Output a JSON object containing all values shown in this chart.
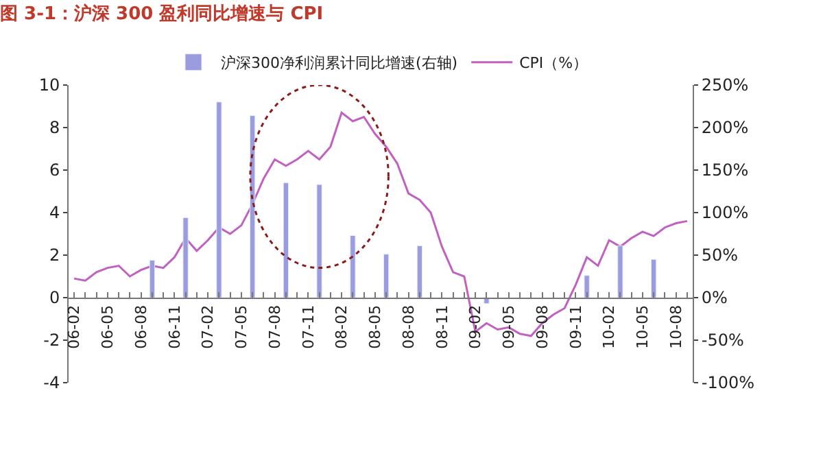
{
  "chart_data": {
    "type": "line",
    "title": "图 3-1：沪深 300 盈利同比增速与 CPI",
    "categories": [
      "06-02",
      null,
      null,
      "06-05",
      null,
      null,
      "06-08",
      null,
      null,
      "06-11",
      null,
      null,
      "07-02",
      null,
      null,
      "07-05",
      null,
      null,
      "07-08",
      null,
      null,
      "07-11",
      null,
      null,
      "08-02",
      null,
      null,
      "08-05",
      null,
      null,
      "08-08",
      null,
      null,
      "08-11",
      null,
      null,
      "09-02",
      null,
      null,
      "09-05",
      null,
      null,
      "09-08",
      null,
      null,
      "09-11",
      null,
      null,
      "10-02",
      null,
      null,
      "10-05",
      null,
      null,
      "10-08",
      null
    ],
    "series": [
      {
        "name": "沪深300净利润累计同比增速(右轴)",
        "type": "bar",
        "axis": "y2",
        "color": "#9b9be0",
        "values": [
          null,
          null,
          null,
          null,
          null,
          null,
          null,
          44,
          null,
          null,
          94,
          null,
          null,
          230,
          null,
          null,
          214,
          null,
          null,
          135,
          null,
          null,
          133,
          null,
          null,
          73,
          null,
          null,
          51,
          null,
          null,
          61,
          null,
          null,
          null,
          null,
          null,
          -7,
          null,
          null,
          null,
          null,
          null,
          null,
          null,
          null,
          26,
          null,
          null,
          61,
          null,
          null,
          45,
          null,
          null,
          null
        ]
      },
      {
        "name": "CPI（%）",
        "color": "#c060c0",
        "values": [
          0.9,
          0.8,
          1.2,
          1.4,
          1.5,
          1.0,
          1.3,
          1.5,
          1.4,
          1.9,
          2.8,
          2.2,
          2.7,
          3.3,
          3.0,
          3.4,
          4.4,
          5.6,
          6.5,
          6.2,
          6.5,
          6.9,
          6.5,
          7.1,
          8.7,
          8.3,
          8.5,
          7.7,
          7.1,
          6.3,
          4.9,
          4.6,
          4.0,
          2.4,
          1.2,
          1.0,
          -1.6,
          -1.2,
          -1.5,
          -1.4,
          -1.7,
          -1.8,
          -1.2,
          -0.8,
          -0.5,
          0.6,
          1.9,
          1.5,
          2.7,
          2.4,
          2.8,
          3.1,
          2.9,
          3.3,
          3.5,
          3.6
        ]
      }
    ],
    "ylim": [
      -4,
      10
    ],
    "yticks": [
      -4,
      -2,
      0,
      2,
      4,
      6,
      8,
      10
    ],
    "y2lim": [
      -100,
      250
    ],
    "y2ticks": [
      {
        "value": -100,
        "label": "-100%"
      },
      {
        "value": -50,
        "label": "-50%"
      },
      {
        "value": 0,
        "label": "0%"
      },
      {
        "value": 50,
        "label": "50%"
      },
      {
        "value": 100,
        "label": "100%"
      },
      {
        "value": 150,
        "label": "150%"
      },
      {
        "value": 200,
        "label": "200%"
      },
      {
        "value": 250,
        "label": "250%"
      }
    ],
    "legend": "top",
    "marker": "none",
    "line_style": "solid"
  }
}
